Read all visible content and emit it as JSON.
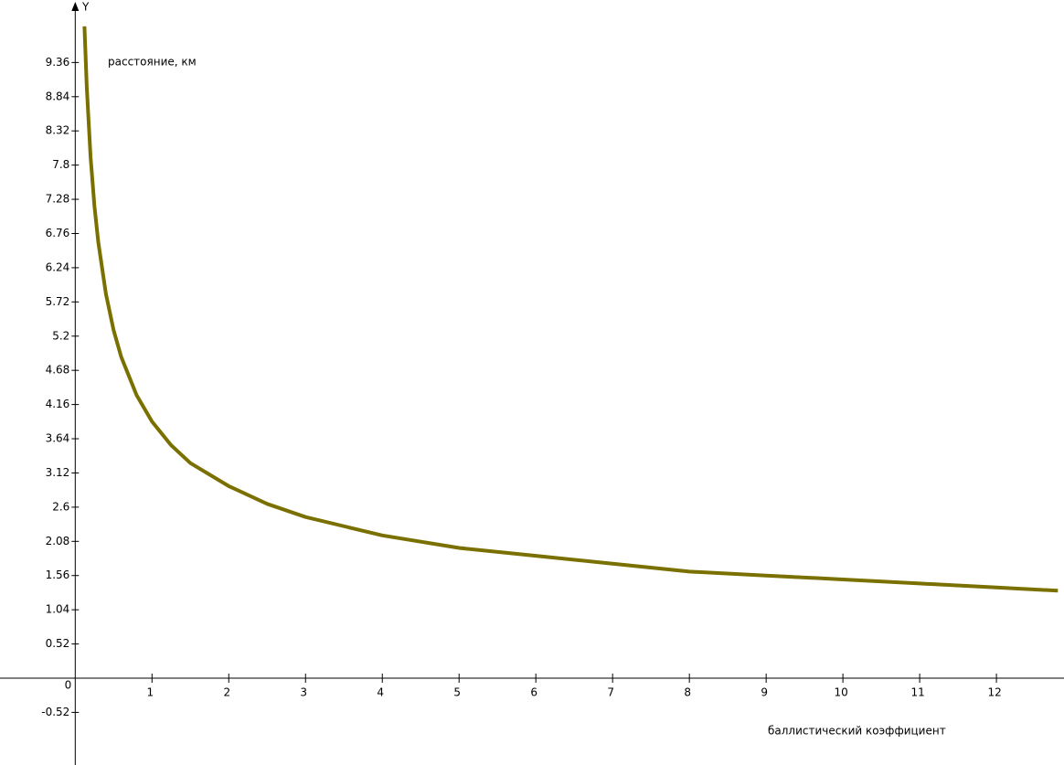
{
  "chart_data": {
    "type": "line",
    "y_axis_name": "Y",
    "ylabel": "расстояние, км",
    "xlabel": "баллистический коэффициент",
    "x": [
      0.12,
      0.15,
      0.2,
      0.25,
      0.3,
      0.4,
      0.5,
      0.6,
      0.8,
      1,
      1.25,
      1.5,
      2,
      2.5,
      3,
      4,
      5,
      6,
      7,
      8,
      9,
      10,
      11,
      12,
      12.8
    ],
    "series": [
      {
        "color": "#7a7000",
        "values": [
          9.91,
          8.99,
          7.92,
          7.18,
          6.63,
          5.84,
          5.29,
          4.88,
          4.3,
          3.9,
          3.54,
          3.27,
          2.92,
          2.65,
          2.45,
          2.17,
          1.98,
          1.86,
          1.74,
          1.62,
          1.56,
          1.5,
          1.44,
          1.38,
          1.33
        ]
      }
    ],
    "xlim": [
      -0.98,
      12.88
    ],
    "ylim": [
      -1.32,
      10.31
    ],
    "xticks": [
      0,
      1,
      2,
      3,
      4,
      5,
      6,
      7,
      8,
      9,
      10,
      11,
      12
    ],
    "yticks": [
      -0.52,
      0.52,
      1.04,
      1.56,
      2.08,
      2.6,
      3.12,
      3.64,
      4.16,
      4.68,
      5.2,
      5.72,
      6.24,
      6.76,
      7.28,
      7.8,
      8.32,
      8.84,
      9.36
    ],
    "grid": false
  }
}
